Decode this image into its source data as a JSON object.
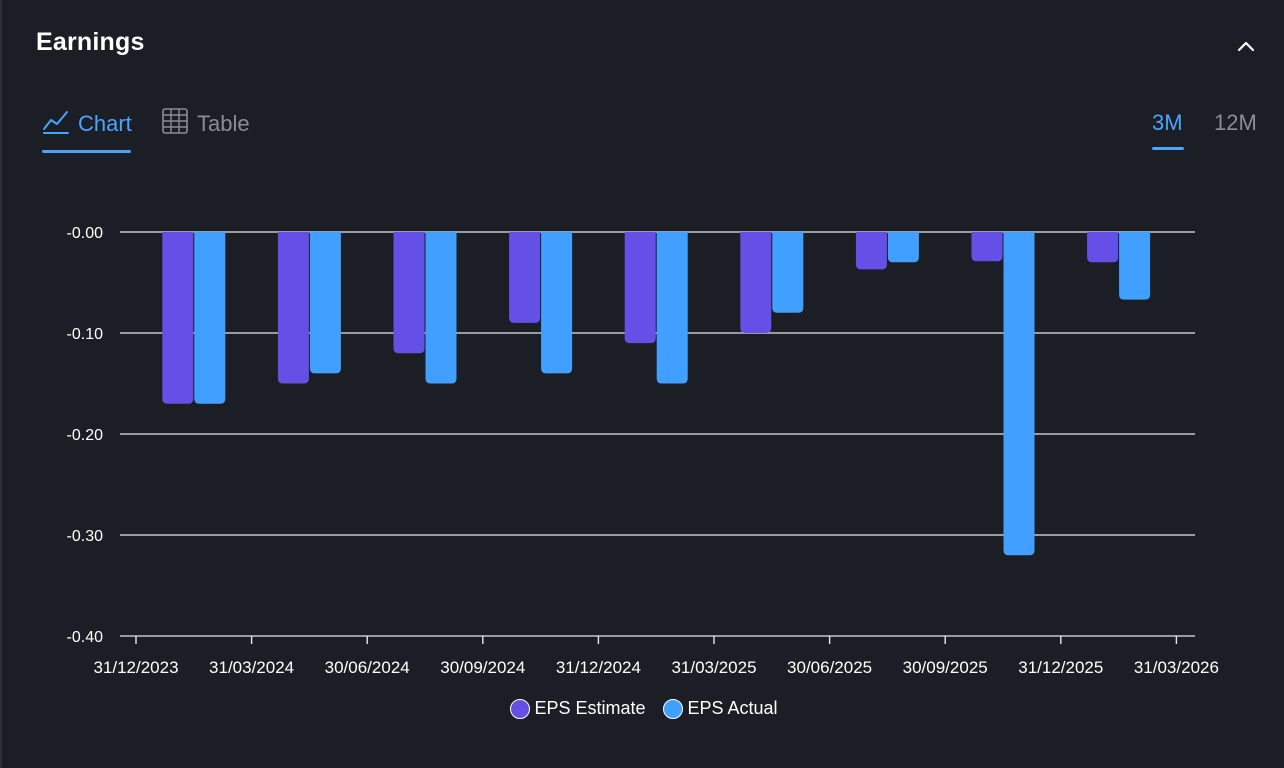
{
  "header": {
    "title": "Earnings"
  },
  "tabs": {
    "chart_label": "Chart",
    "table_label": "Table"
  },
  "periods": {
    "short_label": "3M",
    "long_label": "12M"
  },
  "colors": {
    "background": "#1b1e24",
    "accent": "#4aa3ff",
    "estimate": "#6450e6",
    "actual": "#41a0ff"
  },
  "chart_data": {
    "type": "bar",
    "categories": [
      "31/12/2023",
      "31/03/2024",
      "30/06/2024",
      "30/09/2024",
      "31/12/2024",
      "31/03/2025",
      "30/06/2025",
      "30/09/2025",
      "31/12/2025"
    ],
    "x_tick_labels": [
      "31/12/2023",
      "31/03/2024",
      "30/06/2024",
      "30/09/2024",
      "31/12/2024",
      "31/03/2025",
      "30/06/2025",
      "30/09/2025",
      "31/12/2025",
      "31/03/2026"
    ],
    "series": [
      {
        "name": "EPS Estimate",
        "color": "#6450e6",
        "values": [
          -0.17,
          -0.15,
          -0.12,
          -0.09,
          -0.11,
          -0.1,
          -0.037,
          -0.029,
          -0.03
        ]
      },
      {
        "name": "EPS Actual",
        "color": "#41a0ff",
        "values": [
          -0.17,
          -0.14,
          -0.15,
          -0.14,
          -0.15,
          -0.08,
          -0.03,
          -0.32,
          -0.067
        ]
      }
    ],
    "y_tick_labels": [
      "-0.00",
      "-0.10",
      "-0.20",
      "-0.30",
      "-0.40"
    ],
    "y_ticks": [
      0,
      -0.1,
      -0.2,
      -0.3,
      -0.4
    ],
    "ylim": [
      -0.4,
      0
    ],
    "grid": true,
    "legend_position": "bottom-center"
  }
}
